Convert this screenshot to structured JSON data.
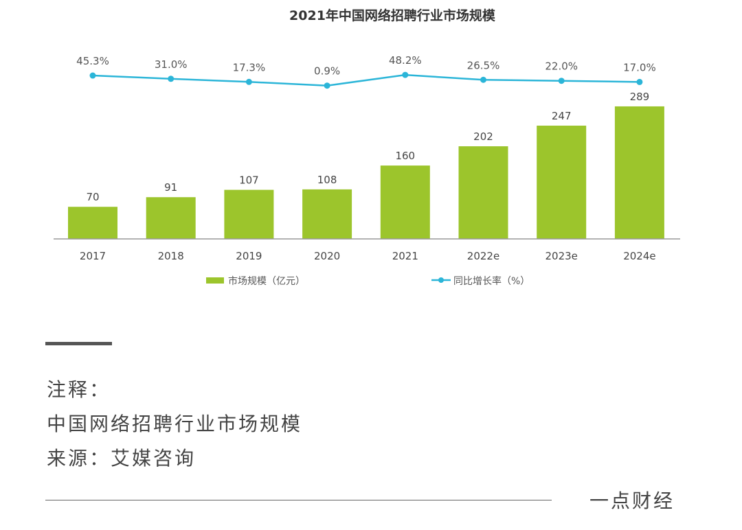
{
  "chart_data": {
    "type": "bar+line",
    "title": "2021年中国网络招聘行业市场规模",
    "categories": [
      "2017",
      "2018",
      "2019",
      "2020",
      "2021",
      "2022e",
      "2023e",
      "2024e"
    ],
    "series": [
      {
        "name": "市场规模（亿元）",
        "type": "bar",
        "color": "#9cc52c",
        "values": [
          70,
          91,
          107,
          108,
          160,
          202,
          247,
          289
        ]
      },
      {
        "name": "同比增长率（%）",
        "type": "line",
        "color": "#2bb5d8",
        "values": [
          45.3,
          31.0,
          17.3,
          0.9,
          48.2,
          26.5,
          22.0,
          17.0
        ],
        "labels": [
          "45.3%",
          "31.0%",
          "17.3%",
          "0.9%",
          "48.2%",
          "26.5%",
          "22.0%",
          "17.0%"
        ]
      }
    ],
    "legend": "bottom",
    "grid": false
  },
  "notes": {
    "heading": "注释：",
    "line1": "中国网络招聘行业市场规模",
    "source": "来源：艾媒咨询"
  },
  "brand": "一点财经"
}
